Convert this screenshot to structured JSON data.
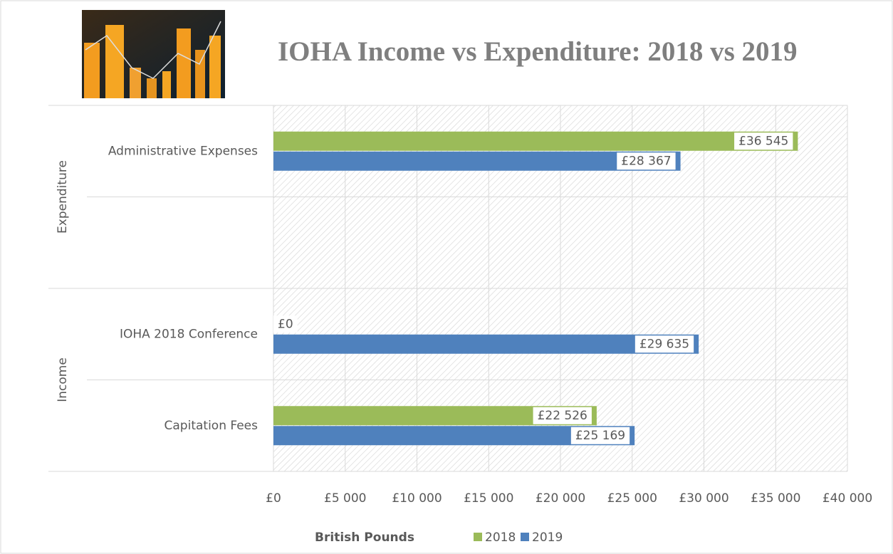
{
  "chart_data": {
    "type": "bar",
    "orientation": "horizontal",
    "title": "IOHA Income vs Expenditure: 2018 vs 2019",
    "categories": [
      [
        "Expenditure",
        "Administrative Expenses"
      ],
      [
        "Expenditure",
        null
      ],
      [
        "Income",
        "IOHA 2018 Conference"
      ],
      [
        "Income",
        "Capitation Fees"
      ]
    ],
    "series": [
      {
        "name": "2018",
        "color": "#9bbb59",
        "label_color": "#595959",
        "values": [
          36545,
          null,
          0,
          22526
        ],
        "value_labels": [
          "£36 545",
          null,
          "£0",
          "£22 526"
        ]
      },
      {
        "name": "2019",
        "color": "#4f81bd",
        "label_color": "#4f81bd",
        "values": [
          28367,
          null,
          29635,
          25169
        ],
        "value_labels": [
          "£28 367",
          null,
          "£29 635",
          "£25 169"
        ]
      }
    ],
    "xlabel": "British Pounds",
    "xlim": [
      0,
      40000
    ],
    "xticks": [
      {
        "value": 0,
        "label": "£0"
      },
      {
        "value": 5000,
        "label": "£5 000"
      },
      {
        "value": 10000,
        "label": "£10 000"
      },
      {
        "value": 15000,
        "label": "£15 000"
      },
      {
        "value": 20000,
        "label": "£20 000"
      },
      {
        "value": 25000,
        "label": "£25 000"
      },
      {
        "value": 30000,
        "label": "£30 000"
      },
      {
        "value": 35000,
        "label": "£35 000"
      },
      {
        "value": 40000,
        "label": "£40 000"
      }
    ],
    "grid": true,
    "legend": "bottom"
  }
}
